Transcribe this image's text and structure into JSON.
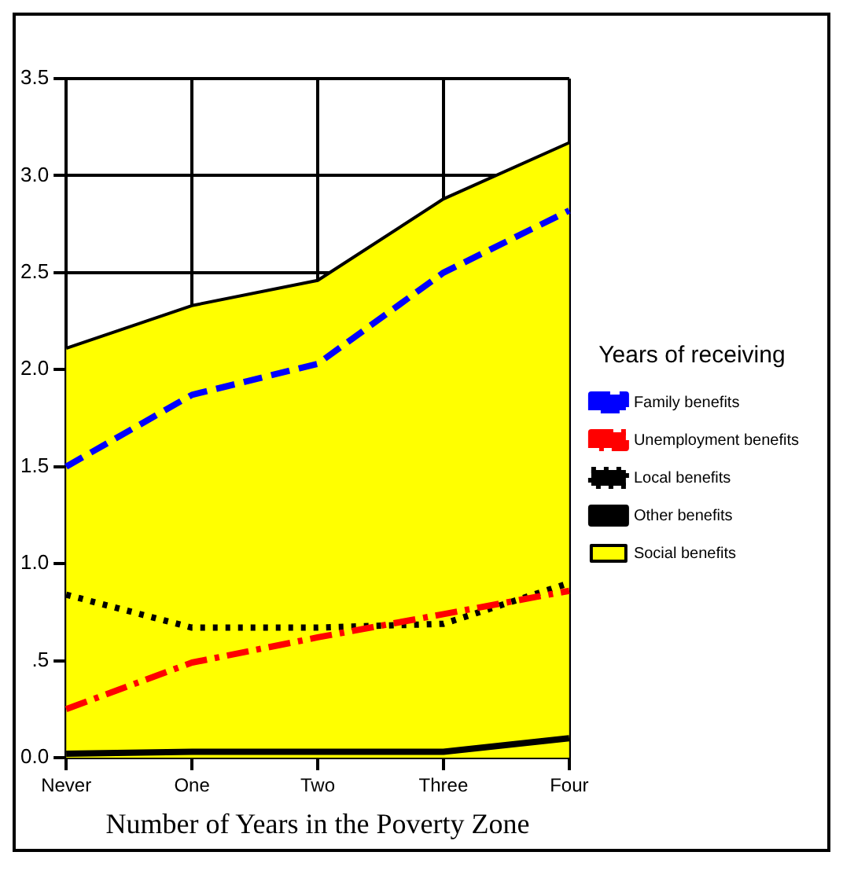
{
  "chart_data": {
    "type": "line",
    "xlabel": "Number of Years in the Poverty Zone",
    "legend_title": "Years of receiving",
    "categories": [
      "Never",
      "One",
      "Two",
      "Three",
      "Four"
    ],
    "series": [
      {
        "name": "Family benefits",
        "color": "#0000ff",
        "line_style": "dashed",
        "values": [
          1.5,
          1.87,
          2.03,
          2.5,
          2.82
        ]
      },
      {
        "name": "Unemployment benefits",
        "color": "#ff0000",
        "line_style": "dashdot",
        "values": [
          0.25,
          0.49,
          0.62,
          0.74,
          0.86
        ]
      },
      {
        "name": "Local benefits",
        "color": "#000000",
        "line_style": "dotted",
        "values": [
          0.84,
          0.67,
          0.67,
          0.69,
          0.9
        ]
      },
      {
        "name": "Other benefits",
        "color": "#000000",
        "line_style": "solid",
        "values": [
          0.02,
          0.03,
          0.03,
          0.03,
          0.1
        ]
      },
      {
        "name": "Social benefits",
        "type": "area",
        "color": "#ffff00",
        "values": [
          2.11,
          2.33,
          2.46,
          2.88,
          3.17
        ]
      }
    ],
    "ylim": [
      0,
      3.5
    ],
    "yticks": [
      {
        "value": 0,
        "label": "0.0"
      },
      {
        "value": 0.5,
        "label": ".5"
      },
      {
        "value": 1,
        "label": "1.0"
      },
      1.5,
      {
        "value": 2,
        "label": "2.0"
      },
      2.5,
      {
        "value": 3,
        "label": "3.0"
      },
      3.5
    ],
    "grid": true,
    "legend": "right",
    "marker": "none"
  }
}
